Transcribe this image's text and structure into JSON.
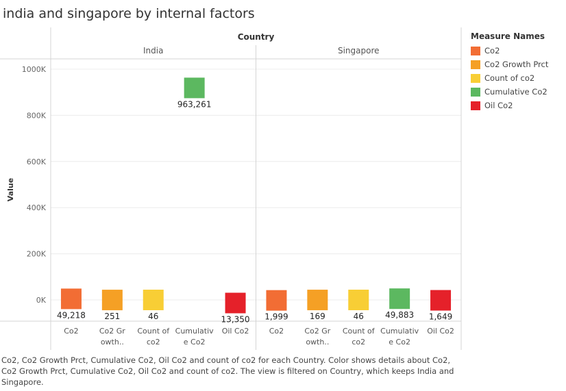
{
  "title": "india and singapore by internal factors",
  "legend": {
    "title": "Measure Names",
    "items": [
      {
        "label": "Co2",
        "color": "#f26d34"
      },
      {
        "label": "Co2 Growth Prct",
        "color": "#f5a025"
      },
      {
        "label": "Count of co2",
        "color": "#f8ce35"
      },
      {
        "label": "Cumulative Co2",
        "color": "#5cb860"
      },
      {
        "label": "Oil Co2",
        "color": "#e5212a"
      }
    ]
  },
  "caption": "Co2, Co2 Growth Prct, Cumulative Co2, Oil Co2 and count of co2 for each Country.  Color shows details about Co2, Co2 Growth Prct, Cumulative Co2, Oil Co2 and count of co2. The view is filtered on Country, which keeps India and Singapore.",
  "chart_data": {
    "type": "bar",
    "column_header": "Country",
    "ylabel": "Value",
    "ylim": [
      -90000,
      1050000
    ],
    "yticks": [
      0,
      200000,
      400000,
      600000,
      800000,
      1000000
    ],
    "ytick_labels": [
      "0K",
      "200K",
      "400K",
      "600K",
      "800K",
      "1000K"
    ],
    "grid": true,
    "legend_position": "right",
    "categories": [
      "Co2",
      "Co2 Growth Prct",
      "Count of co2",
      "Cumulative Co2",
      "Oil Co2"
    ],
    "category_labels": [
      [
        "Co2"
      ],
      [
        "Co2 Gr",
        "owth.."
      ],
      [
        "Count of",
        "co2"
      ],
      [
        "Cumulativ",
        "e Co2"
      ],
      [
        "Oil Co2"
      ]
    ],
    "panels": [
      {
        "name": "India",
        "values": [
          49218,
          251,
          46,
          963261,
          13350
        ],
        "value_labels": [
          "49,218",
          "251",
          "46",
          "963,261",
          "13,350"
        ]
      },
      {
        "name": "Singapore",
        "values": [
          1999,
          169,
          46,
          49883,
          1649
        ],
        "value_labels": [
          "1,999",
          "169",
          "46",
          "49,883",
          "1,649"
        ]
      }
    ]
  }
}
